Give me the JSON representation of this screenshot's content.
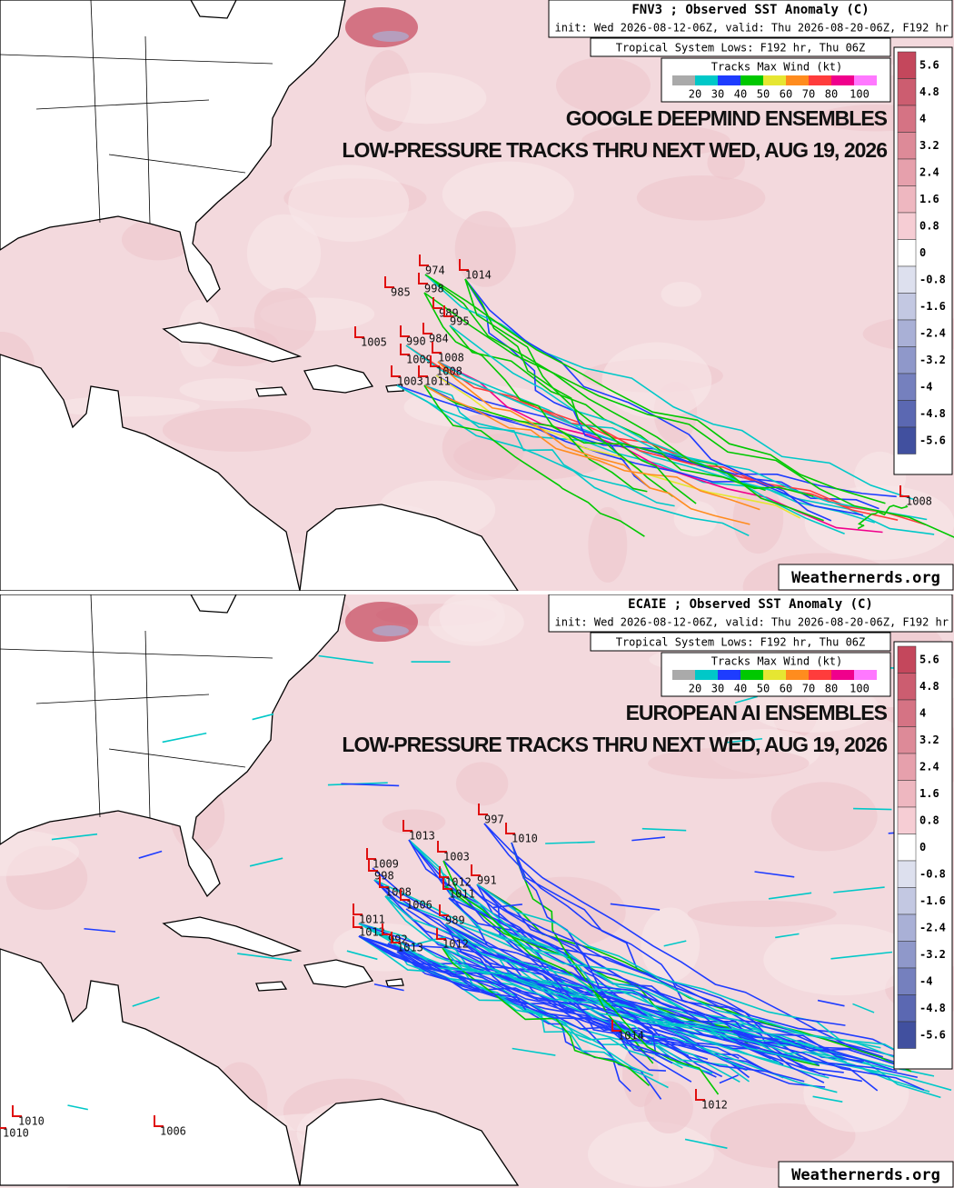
{
  "panels": [
    {
      "header": {
        "title": "FNV3 ; Observed SST Anomaly (C)",
        "init": "init: Wed 2026-08-12-06Z, valid: Thu 2026-08-20-06Z, F192 hr",
        "lows": "Tropical System Lows: F192 hr, Thu 06Z"
      },
      "legend": {
        "title": "Tracks Max Wind (kt)",
        "labels": [
          20,
          30,
          40,
          50,
          60,
          70,
          80,
          100
        ]
      },
      "colorbar": [
        5.6,
        4.8,
        4,
        3.2,
        2.4,
        1.6,
        0.8,
        0,
        -0.8,
        -1.6,
        -2.4,
        -3.2,
        -4,
        -4.8,
        -5.6
      ],
      "overlay": [
        "GOOGLE DEEPMIND ENSEMBLES",
        "LOW-PRESSURE TRACKS THRU NEXT WED, AUG 19, 2026"
      ],
      "lows": [
        "974",
        "1014",
        "985",
        "998",
        "989",
        "995",
        "1005",
        "990",
        "984",
        "1009",
        "1008",
        "1008",
        "1003",
        "1011",
        "1008"
      ],
      "watermark": "Weathernerds.org"
    },
    {
      "header": {
        "title": "ECAIE ; Observed SST Anomaly (C)",
        "init": "init: Wed 2026-08-12-06Z, valid: Thu 2026-08-20-06Z, F192 hr",
        "lows": "Tropical System Lows: F192 hr, Thu 06Z"
      },
      "legend": {
        "title": "Tracks Max Wind (kt)",
        "labels": [
          20,
          30,
          40,
          50,
          60,
          70,
          80,
          100
        ]
      },
      "colorbar": [
        5.6,
        4.8,
        4,
        3.2,
        2.4,
        1.6,
        0.8,
        0,
        -0.8,
        -1.6,
        -2.4,
        -3.2,
        -4,
        -4.8,
        -5.6
      ],
      "overlay": [
        "EUROPEAN AI ENSEMBLES",
        "LOW-PRESSURE TRACKS THRU NEXT WED, AUG 19, 2026"
      ],
      "lows": [
        "997",
        "1010",
        "1013",
        "1003",
        "1009",
        "998",
        "1012",
        "991",
        "1008",
        "1011",
        "1006",
        "989",
        "1011",
        "1013",
        "992",
        "1013",
        "1012",
        "1014",
        "1012",
        "1010",
        "1010",
        "1006"
      ],
      "watermark": "Weathernerds.org"
    }
  ]
}
